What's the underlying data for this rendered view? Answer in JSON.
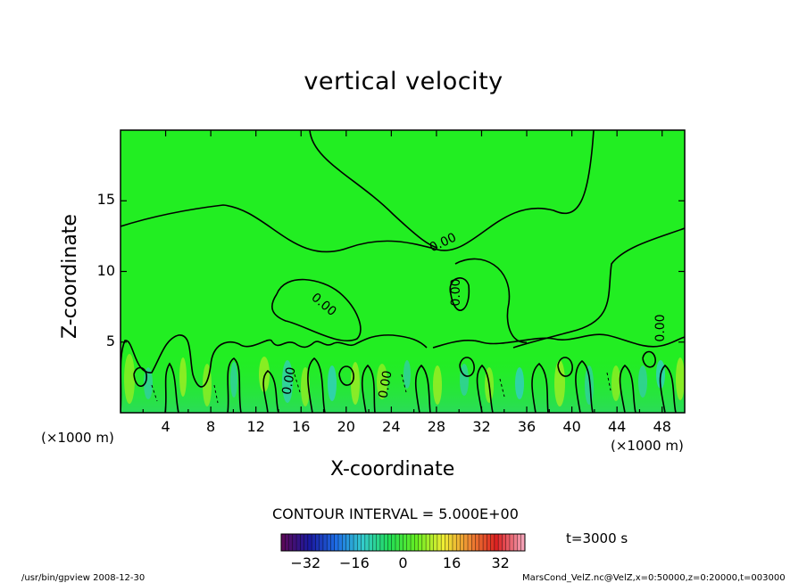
{
  "chart_data": {
    "type": "heatmap",
    "title": "vertical velocity",
    "xlabel": "X-coordinate",
    "ylabel": "Z-coordinate",
    "x_unit": "(×1000 m)",
    "y_unit": "(×1000 m)",
    "xlim": [
      0,
      50
    ],
    "ylim": [
      0,
      20
    ],
    "x_ticks": [
      "4",
      "8",
      "12",
      "16",
      "20",
      "24",
      "28",
      "32",
      "36",
      "40",
      "44",
      "48"
    ],
    "y_ticks": [
      "5",
      "10",
      "15"
    ],
    "contour_labels": [
      "0.00",
      "0.00",
      "0.00",
      "0.00",
      "0.00",
      "0.00"
    ],
    "contour_interval_text": "CONTOUR INTERVAL = 5.000E+00",
    "colorbar": {
      "ticks": [
        "−32",
        "−16",
        "0",
        "16",
        "32"
      ],
      "range": [
        -40,
        40
      ],
      "colors": [
        "#5a0a5a",
        "#1a1aa0",
        "#1e6ee6",
        "#33cccc",
        "#22dd55",
        "#66ee22",
        "#eeee33",
        "#ee8833",
        "#dd2222",
        "#f4a0b4"
      ]
    },
    "background_color": "#22ee22",
    "time_label": "t=3000 s"
  },
  "footer": {
    "left": "/usr/bin/gpview   2008-12-30",
    "right": "MarsCond_VelZ.nc@VelZ,x=0:50000,z=0:20000,t=003000"
  }
}
